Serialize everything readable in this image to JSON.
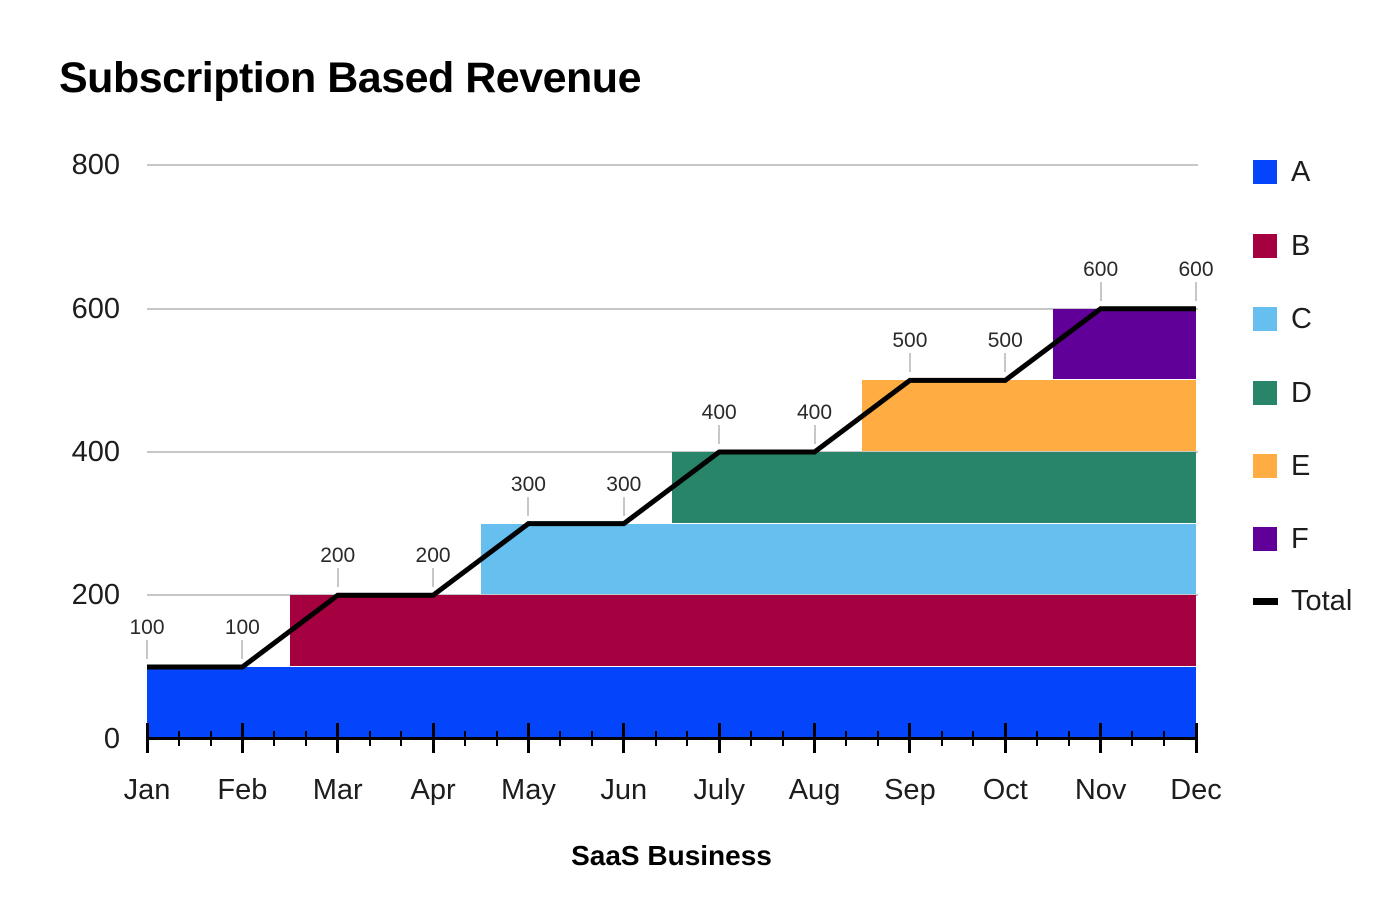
{
  "title": "Subscription Based Revenue",
  "chart_data": {
    "type": "area",
    "stacked": true,
    "title": "Subscription Based Revenue",
    "xlabel": "SaaS Business",
    "ylabel": "",
    "x": [
      "Jan",
      "Feb",
      "Mar",
      "Apr",
      "May",
      "Jun",
      "July",
      "Aug",
      "Sep",
      "Oct",
      "Nov",
      "Dec"
    ],
    "yticks": [
      0,
      200,
      400,
      600,
      800
    ],
    "ylim": [
      0,
      800
    ],
    "grid": "horizontal",
    "legend_position": "right",
    "series": [
      {
        "name": "A",
        "color": "#0444fb",
        "values": [
          100,
          100,
          100,
          100,
          100,
          100,
          100,
          100,
          100,
          100,
          100,
          100
        ]
      },
      {
        "name": "B",
        "color": "#a50040",
        "values": [
          0,
          0,
          100,
          100,
          100,
          100,
          100,
          100,
          100,
          100,
          100,
          100
        ]
      },
      {
        "name": "C",
        "color": "#67bff0",
        "values": [
          0,
          0,
          0,
          0,
          100,
          100,
          100,
          100,
          100,
          100,
          100,
          100
        ]
      },
      {
        "name": "D",
        "color": "#28856a",
        "values": [
          0,
          0,
          0,
          0,
          0,
          0,
          100,
          100,
          100,
          100,
          100,
          100
        ]
      },
      {
        "name": "E",
        "color": "#ffad42",
        "values": [
          0,
          0,
          0,
          0,
          0,
          0,
          0,
          0,
          100,
          100,
          100,
          100
        ]
      },
      {
        "name": "F",
        "color": "#600098",
        "values": [
          0,
          0,
          0,
          0,
          0,
          0,
          0,
          0,
          0,
          0,
          100,
          100
        ]
      }
    ],
    "total": {
      "name": "Total",
      "color": "#000000",
      "values": [
        100,
        100,
        200,
        200,
        300,
        300,
        400,
        400,
        500,
        500,
        600,
        600
      ]
    },
    "data_labels": [
      "100",
      "100",
      "200",
      "200",
      "300",
      "300",
      "400",
      "400",
      "500",
      "500",
      "600",
      "600"
    ],
    "colors": {
      "gridline": "#c7c7c7",
      "leader": "#c7c7c7",
      "axis": "#000000",
      "text": "#1d1d1d"
    }
  }
}
